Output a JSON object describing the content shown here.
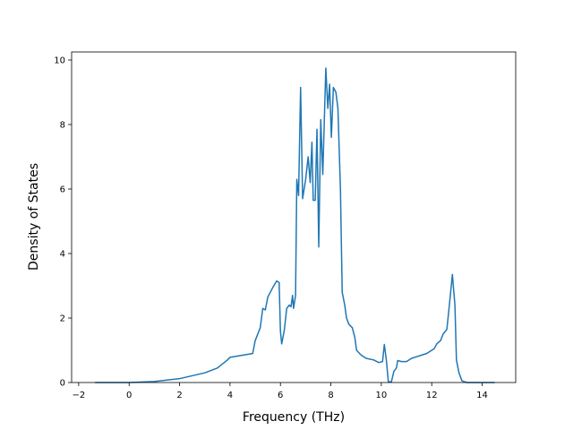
{
  "chart_data": {
    "type": "line",
    "x_label": "Frequency (THz)",
    "y_label": "Density of States",
    "x": [
      -1.35,
      0,
      1,
      2,
      3,
      3.5,
      3.9,
      4,
      4.9,
      5,
      5.2,
      5.3,
      5.4,
      5.5,
      5.6,
      5.7,
      5.85,
      5.95,
      6.0,
      6.05,
      6.15,
      6.25,
      6.35,
      6.42,
      6.48,
      6.52,
      6.6,
      6.65,
      6.72,
      6.8,
      6.88,
      7.0,
      7.1,
      7.18,
      7.25,
      7.3,
      7.38,
      7.45,
      7.52,
      7.6,
      7.68,
      7.8,
      7.88,
      7.95,
      8.02,
      8.1,
      8.2,
      8.28,
      8.38,
      8.45,
      8.55,
      8.62,
      8.72,
      8.85,
      8.95,
      9.02,
      9.2,
      9.4,
      9.7,
      9.9,
      10.05,
      10.12,
      10.2,
      10.28,
      10.4,
      10.5,
      10.6,
      10.65,
      10.8,
      11.0,
      11.2,
      11.4,
      11.6,
      11.8,
      12.0,
      12.1,
      12.2,
      12.35,
      12.45,
      12.6,
      12.7,
      12.82,
      12.92,
      12.98,
      13.08,
      13.2,
      13.4,
      14.5
    ],
    "values": [
      0,
      0,
      0.03,
      0.12,
      0.3,
      0.45,
      0.7,
      0.78,
      0.9,
      1.3,
      1.7,
      2.3,
      2.25,
      2.65,
      2.8,
      2.95,
      3.15,
      3.1,
      1.6,
      1.2,
      1.6,
      2.3,
      2.4,
      2.35,
      2.7,
      2.3,
      2.7,
      6.3,
      5.8,
      9.15,
      5.7,
      6.3,
      7.0,
      6.2,
      7.45,
      5.65,
      5.65,
      7.85,
      4.2,
      8.15,
      6.45,
      9.75,
      8.5,
      9.25,
      7.6,
      9.15,
      9.0,
      8.5,
      6.0,
      2.8,
      2.4,
      2.0,
      1.8,
      1.7,
      1.4,
      1.0,
      0.85,
      0.75,
      0.7,
      0.62,
      0.65,
      1.18,
      0.7,
      0.02,
      0.02,
      0.35,
      0.45,
      0.68,
      0.65,
      0.65,
      0.75,
      0.8,
      0.85,
      0.9,
      1.0,
      1.05,
      1.2,
      1.3,
      1.5,
      1.65,
      2.4,
      3.35,
      2.4,
      0.7,
      0.3,
      0.05,
      0,
      0
    ],
    "color": "#1f77b4",
    "xlim": [
      -2.28,
      15.33
    ],
    "xticks": [
      {
        "value": -2,
        "label": "−2"
      },
      0,
      2,
      4,
      6,
      8,
      10,
      12,
      14
    ],
    "ylim": [
      0,
      10.25
    ],
    "yticks": [
      0,
      2,
      4,
      6,
      8,
      10
    ]
  }
}
